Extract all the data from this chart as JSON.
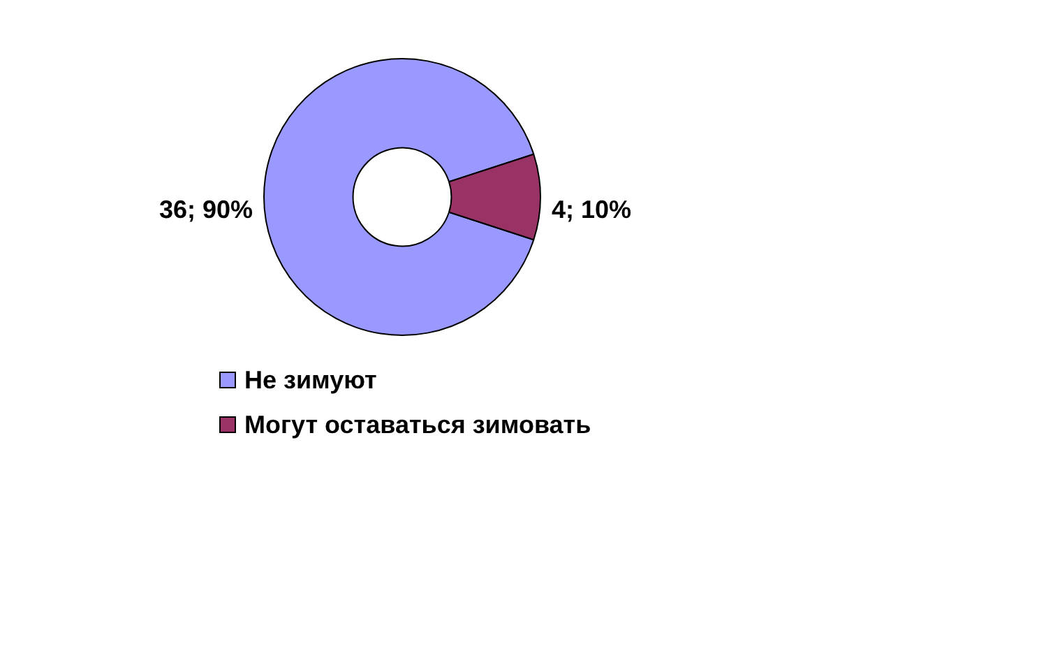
{
  "chart_data": {
    "type": "donut",
    "categories": [
      "Не зимуют",
      "Могут оставаться зимовать"
    ],
    "values": [
      36,
      4
    ],
    "colors": [
      "#9999ff",
      "#993366"
    ],
    "value_labels": [
      "36; 90%",
      "4; 10%"
    ],
    "legend": "bottom"
  }
}
